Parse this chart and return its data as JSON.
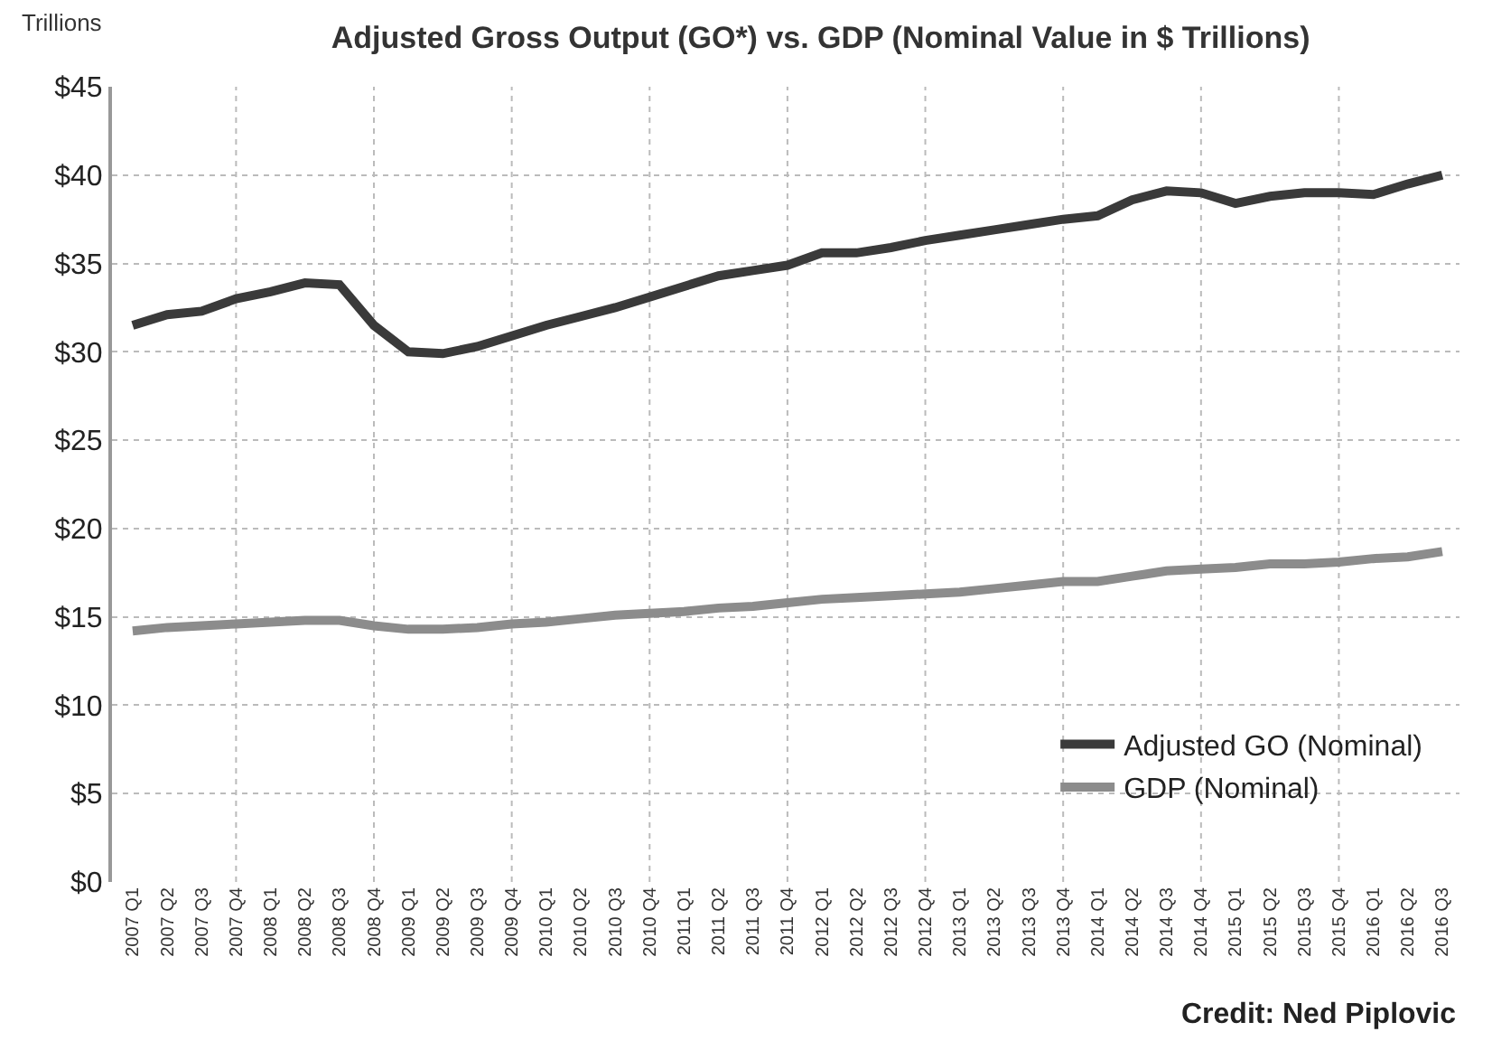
{
  "chart_data": {
    "type": "line",
    "title": "Adjusted Gross Output (GO*) vs. GDP (Nominal Value in $ Trillions)",
    "ylabel": "Trillions",
    "categories": [
      "2007 Q1",
      "2007 Q2",
      "2007 Q3",
      "2007 Q4",
      "2008 Q1",
      "2008 Q2",
      "2008 Q3",
      "2008 Q4",
      "2009 Q1",
      "2009 Q2",
      "2009 Q3",
      "2009 Q4",
      "2010 Q1",
      "2010 Q2",
      "2010 Q3",
      "2010 Q4",
      "2011 Q1",
      "2011 Q2",
      "2011 Q3",
      "2011 Q4",
      "2012 Q1",
      "2012 Q2",
      "2012 Q3",
      "2012 Q4",
      "2013 Q1",
      "2013 Q2",
      "2013 Q3",
      "2013 Q4",
      "2014 Q1",
      "2014 Q2",
      "2014 Q3",
      "2014 Q4",
      "2015 Q1",
      "2015 Q2",
      "2015 Q3",
      "2015 Q4",
      "2016 Q1",
      "2016 Q2",
      "2016 Q3"
    ],
    "series": [
      {
        "name": "Adjusted GO (Nominal)",
        "color": "#3a3a3a",
        "values": [
          31.5,
          32.1,
          32.3,
          33.0,
          33.4,
          33.9,
          33.8,
          31.5,
          30.0,
          29.9,
          30.3,
          30.9,
          31.5,
          32.0,
          32.5,
          33.1,
          33.7,
          34.3,
          34.6,
          34.9,
          35.6,
          35.6,
          35.9,
          36.3,
          36.6,
          36.9,
          37.2,
          37.5,
          37.7,
          38.6,
          39.1,
          39.0,
          38.4,
          38.8,
          39.0,
          39.0,
          38.9,
          39.5,
          40.0
        ]
      },
      {
        "name": "GDP (Nominal)",
        "color": "#8c8c8c",
        "values": [
          14.2,
          14.4,
          14.5,
          14.6,
          14.7,
          14.8,
          14.8,
          14.5,
          14.3,
          14.3,
          14.4,
          14.6,
          14.7,
          14.9,
          15.1,
          15.2,
          15.3,
          15.5,
          15.6,
          15.8,
          16.0,
          16.1,
          16.2,
          16.3,
          16.4,
          16.6,
          16.8,
          17.0,
          17.0,
          17.3,
          17.6,
          17.7,
          17.8,
          18.0,
          18.0,
          18.1,
          18.3,
          18.4,
          18.7
        ]
      }
    ],
    "ylim": [
      0,
      45
    ],
    "yticks": [
      {
        "value": 0,
        "label": "$0"
      },
      {
        "value": 5,
        "label": "$5"
      },
      {
        "value": 10,
        "label": "$10"
      },
      {
        "value": 15,
        "label": "$15"
      },
      {
        "value": 20,
        "label": "$20"
      },
      {
        "value": 25,
        "label": "$25"
      },
      {
        "value": 30,
        "label": "$30"
      },
      {
        "value": 35,
        "label": "$35"
      },
      {
        "value": 40,
        "label": "$40"
      },
      {
        "value": 45,
        "label": "$45"
      }
    ],
    "grid": true,
    "legend": "bottom right",
    "marker": "none",
    "line_style": "solid",
    "annotations": [
      "Credit: Ned Piplovic"
    ]
  }
}
